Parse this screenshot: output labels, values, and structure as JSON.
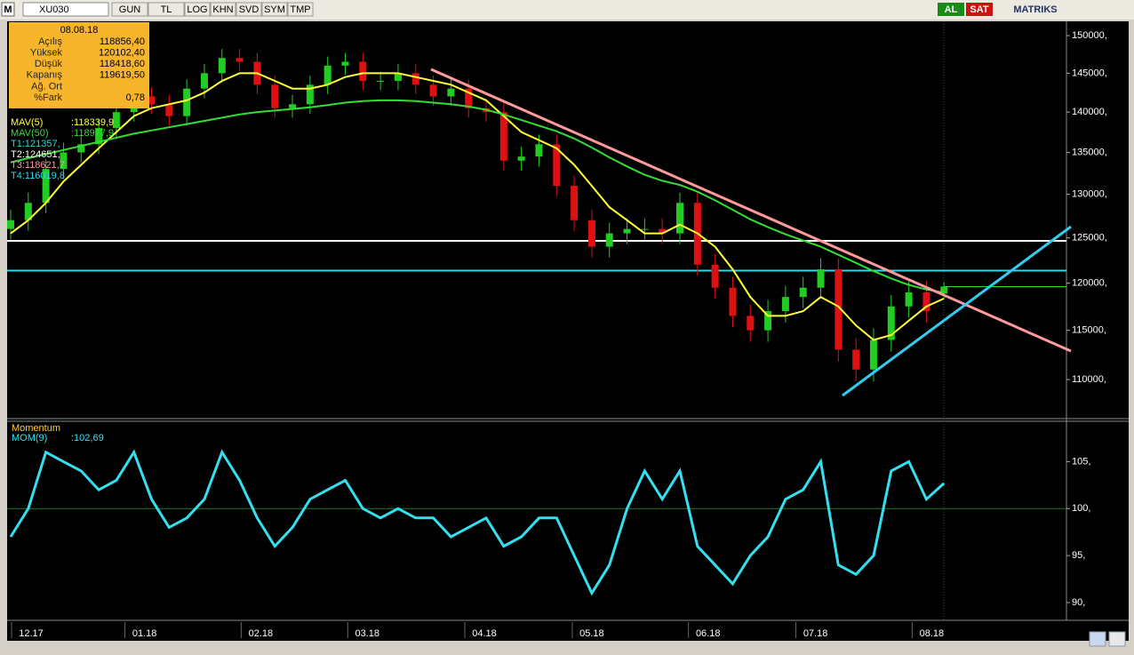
{
  "toolbar": {
    "symbol_box": "M",
    "symbol": "XU030",
    "buttons": [
      "GUN",
      "TL",
      "LOG",
      "KHN",
      "SVD",
      "SYM",
      "TMP"
    ],
    "buy": "AL",
    "sell": "SAT",
    "brand": "MATRIKS"
  },
  "info_box": {
    "date": "08.08.18",
    "rows": [
      [
        "Açılış",
        "118856,40"
      ],
      [
        "Yüksek",
        "120102,40"
      ],
      [
        "Düşük",
        "118418,60"
      ],
      [
        "Kapanış",
        "119619,50"
      ],
      [
        "Ağ. Ort",
        null
      ],
      [
        "%Fark",
        "0,78"
      ]
    ]
  },
  "indicators": [
    {
      "name": "MAV(5)",
      "value": ":118339,9",
      "color": "#ffff33"
    },
    {
      "name": "MAV(50)",
      "value": ":118977,9",
      "color": "#33dd33"
    },
    {
      "name": "T1:121357,",
      "value": null,
      "color": "#33d6e6"
    },
    {
      "name": "T2:124651,",
      "value": null,
      "color": "#ffffff"
    },
    {
      "name": "T3:118621,7",
      "value": null,
      "color": "#ff9a9a"
    },
    {
      "name": "T4:116019,8",
      "value": null,
      "color": "#33d6e6"
    }
  ],
  "chart_data": [
    {
      "type": "candlestick",
      "log": true,
      "xlim": [
        0,
        59.7
      ],
      "ylim": [
        106450,
        151700
      ],
      "xticks": [
        {
          "value": 1.16,
          "label": "12.17"
        },
        {
          "value": 7.6,
          "label": "01.18"
        },
        {
          "value": 14.2,
          "label": "02.18"
        },
        {
          "value": 20.25,
          "label": "03.18"
        },
        {
          "value": 26.9,
          "label": "04.18"
        },
        {
          "value": 33,
          "label": "05.18"
        },
        {
          "value": 39.6,
          "label": "06.18"
        },
        {
          "value": 45.7,
          "label": "07.18"
        },
        {
          "value": 52.3,
          "label": "08.18"
        }
      ],
      "yticks": [
        {
          "value": 150000,
          "label": "150000,"
        },
        {
          "value": 145000,
          "label": "145000,"
        },
        {
          "value": 140000,
          "label": "140000,"
        },
        {
          "value": 135000,
          "label": "135000,"
        },
        {
          "value": 130000,
          "label": "130000,"
        },
        {
          "value": 125000,
          "label": "125000,"
        },
        {
          "value": 120000,
          "label": "120000,"
        },
        {
          "value": 115000,
          "label": "115000,"
        },
        {
          "value": 110000,
          "label": "110000,"
        }
      ],
      "up_color": "#22cc22",
      "down_color": "#dd1111",
      "open": [
        126000,
        127000,
        129000,
        133000,
        135000,
        136000,
        138000,
        140000,
        142000,
        141000,
        139500,
        143000,
        145000,
        147000,
        146500,
        143500,
        140500,
        141000,
        143500,
        146000,
        146500,
        144000,
        144000,
        145000,
        143500,
        142000,
        143000,
        140500,
        140000,
        134000,
        134500,
        136000,
        131000,
        127000,
        124000,
        125500,
        126000,
        126000,
        125500,
        129000,
        122000,
        119500,
        116500,
        115000,
        117000,
        118500,
        119500,
        121500,
        113000,
        111000,
        114000,
        117500,
        119000,
        118856.4
      ],
      "high": [
        128200,
        130200,
        134200,
        136200,
        137200,
        139200,
        141200,
        143200,
        143200,
        142200,
        144200,
        146200,
        148200,
        148200,
        147700,
        144700,
        142200,
        144700,
        147200,
        147700,
        147700,
        145200,
        146200,
        146200,
        144700,
        144200,
        144200,
        141700,
        141200,
        135700,
        137200,
        137200,
        132200,
        128200,
        126700,
        127200,
        127200,
        127200,
        130200,
        130200,
        123200,
        120700,
        117700,
        118200,
        119700,
        120700,
        122700,
        122700,
        114200,
        115200,
        118700,
        120200,
        120200,
        120102.4
      ],
      "low": [
        124800,
        125800,
        127800,
        131800,
        133800,
        134800,
        136800,
        138800,
        139800,
        138300,
        138300,
        141800,
        143800,
        145300,
        142300,
        139300,
        139300,
        139800,
        142300,
        144800,
        142800,
        142800,
        142800,
        142300,
        140800,
        140800,
        139300,
        138800,
        132800,
        132800,
        133300,
        129800,
        125800,
        122800,
        122800,
        124300,
        124800,
        124300,
        124300,
        120800,
        118300,
        115300,
        113800,
        113800,
        115800,
        117300,
        118300,
        111800,
        109800,
        109800,
        112800,
        116300,
        115800,
        118418.6
      ],
      "close": [
        127000,
        129000,
        133000,
        135000,
        136000,
        138000,
        140000,
        142000,
        141000,
        139500,
        143000,
        145000,
        147000,
        146500,
        143500,
        140500,
        141000,
        143500,
        146000,
        146500,
        144000,
        144000,
        145000,
        143500,
        142000,
        143000,
        140500,
        140000,
        134000,
        134500,
        136000,
        131000,
        127000,
        124000,
        125500,
        126000,
        126000,
        125500,
        129000,
        122000,
        119500,
        116500,
        115000,
        117000,
        118500,
        119500,
        121500,
        113000,
        111000,
        114000,
        117500,
        119000,
        117000,
        119619.5
      ],
      "series": [
        {
          "name": "MAV(5)",
          "color": "#ffff33",
          "values": [
            125500,
            127000,
            129000,
            131500,
            133500,
            135500,
            137500,
            139500,
            140500,
            141000,
            141500,
            142500,
            144000,
            145000,
            145000,
            144000,
            143000,
            143000,
            143500,
            144500,
            145000,
            145000,
            145000,
            144500,
            144000,
            143500,
            142500,
            141500,
            139500,
            137500,
            136500,
            135500,
            133500,
            131000,
            128500,
            127000,
            125500,
            125500,
            126500,
            125500,
            124000,
            121500,
            118500,
            116500,
            116500,
            117000,
            118500,
            117500,
            115500,
            114000,
            114500,
            116000,
            117500,
            118339.9
          ]
        },
        {
          "name": "MAV(50)",
          "color": "#33dd33",
          "values": [
            133800,
            134300,
            134800,
            135300,
            135800,
            136300,
            136800,
            137300,
            137700,
            138100,
            138500,
            138900,
            139300,
            139700,
            140000,
            140200,
            140400,
            140600,
            140900,
            141200,
            141400,
            141500,
            141500,
            141400,
            141200,
            141000,
            140700,
            140300,
            139700,
            139000,
            138300,
            137600,
            136700,
            135600,
            134400,
            133300,
            132300,
            131600,
            131100,
            130300,
            129300,
            128200,
            127100,
            126200,
            125400,
            124700,
            124000,
            123100,
            122200,
            121300,
            120500,
            119800,
            119300,
            118977.9
          ]
        }
      ],
      "levels": [
        {
          "value": 124651,
          "color": "#ffffff"
        },
        {
          "value": 121357,
          "color": "#33d6e6"
        }
      ]
    },
    {
      "type": "line",
      "title": "Momentum",
      "xlim": [
        0,
        59.7
      ],
      "ylim": [
        88.3,
        109.1
      ],
      "yticks": [
        {
          "value": 105,
          "label": "105,"
        },
        {
          "value": 100,
          "label": "100,"
        },
        {
          "value": 95,
          "label": "95,"
        },
        {
          "value": 90,
          "label": "90,"
        }
      ],
      "baseline": 100,
      "legend_value": ":102,69",
      "series": [
        {
          "name": "MOM(9)",
          "color": "#33e0f0",
          "values": [
            97,
            100,
            106,
            105,
            104,
            102,
            103,
            106,
            101,
            98,
            99,
            101,
            106,
            103,
            99,
            96,
            98,
            101,
            102,
            103,
            100,
            99,
            100,
            99,
            99,
            97,
            98,
            99,
            96,
            97,
            99,
            99,
            95,
            91,
            94,
            100,
            104,
            101,
            104,
            96,
            94,
            92,
            95,
            97,
            101,
            102,
            105,
            94,
            93,
            95,
            104,
            105,
            101,
            102.69
          ]
        }
      ]
    }
  ]
}
